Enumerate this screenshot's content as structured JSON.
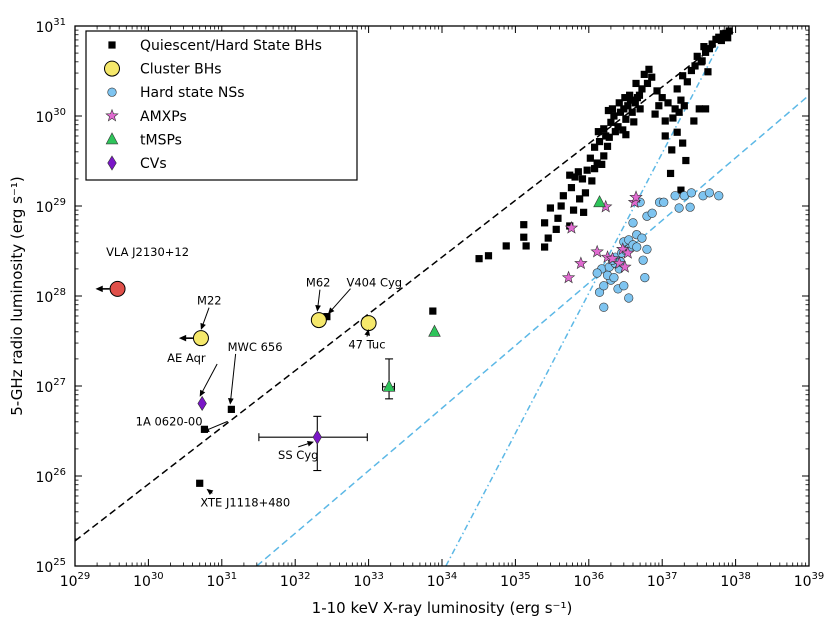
{
  "chart_data": {
    "type": "scatter",
    "x_scale": "log",
    "y_scale": "log",
    "xlim": [
      1e+29,
      1e+39
    ],
    "ylim": [
      1e+25,
      1e+31
    ],
    "xlabel": "1-10 keV X-ray luminosity (erg s⁻¹)",
    "ylabel": "5-GHz radio luminosity (erg s⁻¹)",
    "x_ticks": [
      {
        "base": "10",
        "exp": "29",
        "value": 1e+29
      },
      {
        "base": "10",
        "exp": "30",
        "value": 1e+30
      },
      {
        "base": "10",
        "exp": "31",
        "value": 1e+31
      },
      {
        "base": "10",
        "exp": "32",
        "value": 1e+32
      },
      {
        "base": "10",
        "exp": "33",
        "value": 1e+33
      },
      {
        "base": "10",
        "exp": "34",
        "value": 1e+34
      },
      {
        "base": "10",
        "exp": "35",
        "value": 1e+35
      },
      {
        "base": "10",
        "exp": "36",
        "value": 1e+36
      },
      {
        "base": "10",
        "exp": "37",
        "value": 1e+37
      },
      {
        "base": "10",
        "exp": "38",
        "value": 1e+38
      },
      {
        "base": "10",
        "exp": "39",
        "value": 1e+39
      }
    ],
    "y_ticks": [
      {
        "base": "10",
        "exp": "25",
        "value": 1e+25
      },
      {
        "base": "10",
        "exp": "26",
        "value": 1e+26
      },
      {
        "base": "10",
        "exp": "27",
        "value": 1e+27
      },
      {
        "base": "10",
        "exp": "28",
        "value": 1e+28
      },
      {
        "base": "10",
        "exp": "29",
        "value": 1e+29
      },
      {
        "base": "10",
        "exp": "30",
        "value": 1e+30
      },
      {
        "base": "10",
        "exp": "31",
        "value": 1e+31
      }
    ],
    "legend_position": "top-left",
    "legend": [
      {
        "label": "Quiescent/Hard State BHs",
        "marker": "square",
        "color": "#000000"
      },
      {
        "label": "Cluster BHs",
        "marker": "circle-large",
        "color": "#f5e86b"
      },
      {
        "label": "Hard state NSs",
        "marker": "circle",
        "color": "#7ec4f0"
      },
      {
        "label": "AMXPs",
        "marker": "star",
        "color": "#e06ad0"
      },
      {
        "label": "tMSPs",
        "marker": "triangle",
        "color": "#2ec45a"
      },
      {
        "label": "CVs",
        "marker": "diamond",
        "color": "#7a16c7"
      }
    ],
    "series": [
      {
        "name": "Quiescent/Hard State BHs",
        "marker": "square",
        "color": "#000000",
        "points": [
          [
            5.8e+30,
            3.3e+26
          ],
          [
            5e+30,
            8.3e+25
          ],
          [
            1.35e+31,
            5.5e+26
          ],
          [
            2.7e+32,
            5.9e+27
          ],
          [
            7.5e+33,
            6.8e+27
          ],
          [
            3.2e+34,
            2.6e+28
          ],
          [
            4.3e+34,
            2.8e+28
          ],
          [
            7.5e+34,
            3.6e+28
          ],
          [
            1.4e+35,
            3.6e+28
          ],
          [
            1.3e+35,
            6.2e+28
          ],
          [
            1.3e+35,
            4.5e+28
          ],
          [
            2.5e+35,
            3.5e+28
          ],
          [
            2.8e+35,
            4.4e+28
          ],
          [
            2.5e+35,
            6.5e+28
          ],
          [
            3.6e+35,
            5.5e+28
          ],
          [
            3.8e+35,
            7.3e+28
          ],
          [
            3e+35,
            9.5e+28
          ],
          [
            4.2e+35,
            1e+29
          ],
          [
            5.5e+35,
            6e+28
          ],
          [
            6.2e+35,
            9e+28
          ],
          [
            4.5e+35,
            1.3e+29
          ],
          [
            5.8e+35,
            1.6e+29
          ],
          [
            7.5e+35,
            1.2e+29
          ],
          [
            8.5e+35,
            8.5e+28
          ],
          [
            9e+35,
            1.4e+29
          ],
          [
            6.5e+35,
            2.1e+29
          ],
          [
            7.2e+35,
            2.4e+29
          ],
          [
            8.2e+35,
            2e+29
          ],
          [
            9.5e+35,
            2.5e+29
          ],
          [
            1.1e+36,
            1.9e+29
          ],
          [
            1.2e+36,
            2.6e+29
          ],
          [
            1.05e+36,
            3.4e+29
          ],
          [
            1.3e+36,
            3e+29
          ],
          [
            1.5e+36,
            2.9e+29
          ],
          [
            1.6e+36,
            3.6e+29
          ],
          [
            1.2e+36,
            4.5e+29
          ],
          [
            1.4e+36,
            5.2e+29
          ],
          [
            1.8e+36,
            4.6e+29
          ],
          [
            1.7e+36,
            6e+29
          ],
          [
            1.35e+36,
            6.7e+29
          ],
          [
            1.6e+36,
            7.2e+29
          ],
          [
            2e+36,
            8.5e+29
          ],
          [
            1.9e+36,
            5.8e+29
          ],
          [
            2.3e+36,
            6.7e+29
          ],
          [
            2.5e+36,
            7.6e+29
          ],
          [
            2.2e+36,
            1e+30
          ],
          [
            2.7e+36,
            1.1e+30
          ],
          [
            2.6e+36,
            1.4e+30
          ],
          [
            3e+36,
            1.2e+30
          ],
          [
            3.1e+36,
            1.6e+30
          ],
          [
            3.4e+36,
            1.3e+30
          ],
          [
            3.6e+36,
            1.7e+30
          ],
          [
            3.2e+36,
            9.2e+29
          ],
          [
            3.9e+36,
            1.1e+30
          ],
          [
            3.7e+36,
            1.5e+30
          ],
          [
            4.3e+36,
            1.4e+30
          ],
          [
            4.6e+36,
            1.6e+30
          ],
          [
            4.1e+36,
            8.6e+29
          ],
          [
            3.2e+36,
            6.2e+29
          ],
          [
            2.9e+36,
            7e+29
          ],
          [
            4.4e+36,
            2.3e+30
          ],
          [
            5.3e+36,
            2e+30
          ],
          [
            4.9e+36,
            1.7e+30
          ],
          [
            5.7e+36,
            2.9e+30
          ],
          [
            6.3e+36,
            2.3e+30
          ],
          [
            6.6e+36,
            3.3e+30
          ],
          [
            7.2e+36,
            2.7e+30
          ],
          [
            5e+36,
            1.2e+30
          ],
          [
            2.1e+36,
            1.2e+30
          ],
          [
            1.85e+36,
            1.15e+30
          ],
          [
            8.5e+36,
            1.9e+30
          ],
          [
            9e+36,
            1.3e+30
          ],
          [
            8e+36,
            1.05e+30
          ],
          [
            1e+37,
            1.6e+30
          ],
          [
            1.2e+37,
            1.4e+30
          ],
          [
            1.5e+37,
            1.2e+30
          ],
          [
            1.4e+37,
            9.5e+29
          ],
          [
            1.6e+37,
            2e+30
          ],
          [
            1.8e+37,
            1.5e+30
          ],
          [
            2e+37,
            1.3e+30
          ],
          [
            1.7e+37,
            1.1e+30
          ],
          [
            2.2e+37,
            2.4e+30
          ],
          [
            2.5e+37,
            3.2e+30
          ],
          [
            1.9e+37,
            2.8e+30
          ],
          [
            2.8e+37,
            3.6e+30
          ],
          [
            3.4e+37,
            4e+30
          ],
          [
            3e+37,
            4.6e+30
          ],
          [
            3.9e+37,
            5.1e+30
          ],
          [
            4.4e+37,
            5.6e+30
          ],
          [
            3.7e+37,
            5.9e+30
          ],
          [
            4.8e+37,
            6.3e+30
          ],
          [
            5.4e+37,
            7.1e+30
          ],
          [
            5.9e+37,
            7.5e+30
          ],
          [
            6.4e+37,
            6.9e+30
          ],
          [
            7e+37,
            7.9e+30
          ],
          [
            7.4e+37,
            8.3e+30
          ],
          [
            7.8e+37,
            7.4e+30
          ],
          [
            8.2e+37,
            8.8e+30
          ],
          [
            6.8e+37,
            8.2e+30
          ],
          [
            3.5e+37,
            4.1e+30
          ],
          [
            4.2e+37,
            3.1e+30
          ],
          [
            1.1e+37,
            8.8e+29
          ],
          [
            1.3e+37,
            2.3e+29
          ],
          [
            2.1e+37,
            3.2e+29
          ],
          [
            2.7e+37,
            8.8e+29
          ],
          [
            3.2e+37,
            1.2e+30
          ],
          [
            3.9e+37,
            1.2e+30
          ],
          [
            1.35e+37,
            4.2e+29
          ],
          [
            1.6e+37,
            6.6e+29
          ],
          [
            1.9e+37,
            5e+29
          ],
          [
            1.1e+37,
            6e+29
          ],
          [
            1.8e+37,
            1.5e+29
          ],
          [
            5.5e+35,
            2.2e+29
          ]
        ]
      },
      {
        "name": "Cluster BHs",
        "marker": "circle-large",
        "color": "#f5e86b",
        "points": [
          [
            5.2e+30,
            3.4e+27
          ],
          [
            2.1e+32,
            5.4e+27
          ],
          [
            1e+33,
            5e+27
          ]
        ]
      },
      {
        "name": "Hard state NSs",
        "marker": "circle",
        "color": "#7ec4f0",
        "points": [
          [
            1.6e+36,
            7.5e+27
          ],
          [
            1.4e+36,
            1.1e+28
          ],
          [
            1.6e+36,
            1.3e+28
          ],
          [
            2e+36,
            1.5e+28
          ],
          [
            1.8e+36,
            1.7e+28
          ],
          [
            2.2e+36,
            1.6e+28
          ],
          [
            1.5e+36,
            2e+28
          ],
          [
            1.9e+36,
            2.1e+28
          ],
          [
            2.3e+36,
            2.3e+28
          ],
          [
            2.6e+36,
            2e+28
          ],
          [
            2.5e+36,
            1.2e+28
          ],
          [
            3e+36,
            1.3e+28
          ],
          [
            3.5e+36,
            9.5e+27
          ],
          [
            1.3e+36,
            1.8e+28
          ],
          [
            2.3e+36,
            2.7e+28
          ],
          [
            2.8e+36,
            3e+28
          ],
          [
            3.2e+36,
            3.2e+28
          ],
          [
            3.6e+36,
            3.4e+28
          ],
          [
            3e+36,
            4e+28
          ],
          [
            3.5e+36,
            4.2e+28
          ],
          [
            4e+36,
            3.7e+28
          ],
          [
            4.5e+36,
            4.8e+28
          ],
          [
            5.3e+36,
            4.4e+28
          ],
          [
            5.5e+36,
            2.5e+28
          ],
          [
            5.8e+36,
            1.6e+28
          ],
          [
            2.7e+36,
            2.4e+28
          ],
          [
            4e+36,
            6.5e+28
          ],
          [
            6.2e+36,
            3.3e+28
          ],
          [
            5e+36,
            1.1e+29
          ],
          [
            6.2e+36,
            7.7e+28
          ],
          [
            7.3e+36,
            8.3e+28
          ],
          [
            9.2e+36,
            1.1e+29
          ],
          [
            1.05e+37,
            1.1e+29
          ],
          [
            1.5e+37,
            1.3e+29
          ],
          [
            1.7e+37,
            9.5e+28
          ],
          [
            2e+37,
            1.3e+29
          ],
          [
            2.5e+37,
            1.4e+29
          ],
          [
            2.4e+37,
            9.7e+28
          ],
          [
            3.6e+37,
            1.3e+29
          ],
          [
            4.4e+37,
            1.4e+29
          ],
          [
            5.9e+37,
            1.3e+29
          ],
          [
            2.1e+36,
            2.5e+28
          ],
          [
            4.5e+36,
            3.5e+28
          ]
        ]
      },
      {
        "name": "AMXPs",
        "marker": "star",
        "color": "#e06ad0",
        "points": [
          [
            5.3e+35,
            1.6e+28
          ],
          [
            5.8e+35,
            5.7e+28
          ],
          [
            7.8e+35,
            2.3e+28
          ],
          [
            1.3e+36,
            3.1e+28
          ],
          [
            1.8e+36,
            2.7e+28
          ],
          [
            2.1e+36,
            2.6e+28
          ],
          [
            2.6e+36,
            2.3e+28
          ],
          [
            2.9e+36,
            3.3e+28
          ],
          [
            3.1e+36,
            2.1e+28
          ],
          [
            3.4e+36,
            3e+28
          ],
          [
            4.2e+36,
            1.1e+29
          ],
          [
            4.4e+36,
            1.25e+29
          ],
          [
            1.7e+36,
            9.8e+28
          ]
        ]
      },
      {
        "name": "tMSPs",
        "marker": "triangle",
        "color": "#2ec45a",
        "points": [
          [
            1.9e+33,
            9.8e+26
          ],
          [
            7.9e+33,
            4e+27
          ],
          [
            1.4e+36,
            1.1e+29
          ]
        ],
        "error_bars": [
          {
            "x": 1.9e+33,
            "y": 9.8e+26,
            "xmin": 1.55e+33,
            "xmax": 2.25e+33,
            "ymin": 7.2e+26,
            "ymax": 2e+27
          }
        ]
      },
      {
        "name": "CVs",
        "marker": "diamond",
        "color": "#7a16c7",
        "points": [
          [
            5.4e+30,
            6.4e+26
          ],
          [
            2e+32,
            2.7e+26
          ]
        ],
        "error_bars": [
          {
            "x": 2e+32,
            "y": 2.7e+26,
            "xmin": 3.2e+31,
            "xmax": 9.6e+32,
            "ymin": 1.15e+26,
            "ymax": 4.6e+26
          }
        ]
      },
      {
        "name": "VLA J2130+12",
        "marker": "circle-large",
        "color": "#e0504a",
        "points": [
          [
            3.8e+29,
            1.2e+28
          ]
        ],
        "upper_limit": "x"
      }
    ],
    "upper_limit_arrows": [
      {
        "x": 3.8e+29,
        "y": 1.2e+28,
        "to_x": 1.9e+29
      },
      {
        "x": 5.2e+30,
        "y": 3.4e+27,
        "to_x": 2.6e+30
      }
    ],
    "trend_lines": [
      {
        "style": "dashed",
        "color": "#000000",
        "x": [
          1e+29,
          1e+38
        ],
        "y": [
          1.9e+25,
          9e+30
        ]
      },
      {
        "style": "dashed",
        "color": "#5cb8e6",
        "x": [
          3e+31,
          1e+39
        ],
        "y": [
          1e+25,
          1.7e+30
        ]
      },
      {
        "style": "dash-dot",
        "color": "#5cb8e6",
        "x": [
          1.13e+34,
          6e+37
        ],
        "y": [
          1e+25,
          6.3e+30
        ]
      }
    ],
    "annotations": [
      {
        "text": "VLA J2130+12",
        "label_x": 2.65e+29,
        "label_y": 2.8e+28,
        "ha": "start"
      },
      {
        "text": "M22",
        "label_x": 4.6e+30,
        "label_y": 8e+27,
        "ha": "start",
        "arrow_to": [
          5.2e+30,
          4.2e+27
        ]
      },
      {
        "text": "M62",
        "label_x": 1.4e+32,
        "label_y": 1.27e+28,
        "ha": "start",
        "arrow_to": [
          2e+32,
          6.7e+27
        ]
      },
      {
        "text": "V404 Cyg",
        "label_x": 5e+32,
        "label_y": 1.27e+28,
        "ha": "start",
        "arrow_to": [
          2.8e+32,
          6.3e+27
        ]
      },
      {
        "text": "47 Tuc",
        "label_x": 9.5e+32,
        "label_y": 2.6e+27,
        "ha": "middle",
        "arrow_to": [
          1e+33,
          4.3e+27
        ]
      },
      {
        "text": "AE Aqr",
        "label_x": 1.8e+30,
        "label_y": 1.85e+27,
        "ha": "start",
        "arrow_to": [
          5e+30,
          7.6e+26
        ]
      },
      {
        "text": "MWC 656",
        "label_x": 1.2e+31,
        "label_y": 2.45e+27,
        "ha": "start",
        "arrow_to": [
          1.3e+31,
          6.2e+26
        ]
      },
      {
        "text": "1A 0620-00",
        "label_x": 6.7e+29,
        "label_y": 3.65e+26,
        "ha": "start",
        "arrow_to": [
          5.5e+30,
          3.1e+26
        ]
      },
      {
        "text": "SS Cyg",
        "label_x": 1.1e+32,
        "label_y": 1.55e+26,
        "ha": "middle",
        "arrow_to": [
          1.8e+32,
          2.4e+26
        ]
      },
      {
        "text": "XTE J1118+480",
        "label_x": 5.1e+30,
        "label_y": 4.6e+25,
        "ha": "start",
        "arrow_to": [
          6.2e+30,
          7.2e+25
        ]
      }
    ]
  }
}
